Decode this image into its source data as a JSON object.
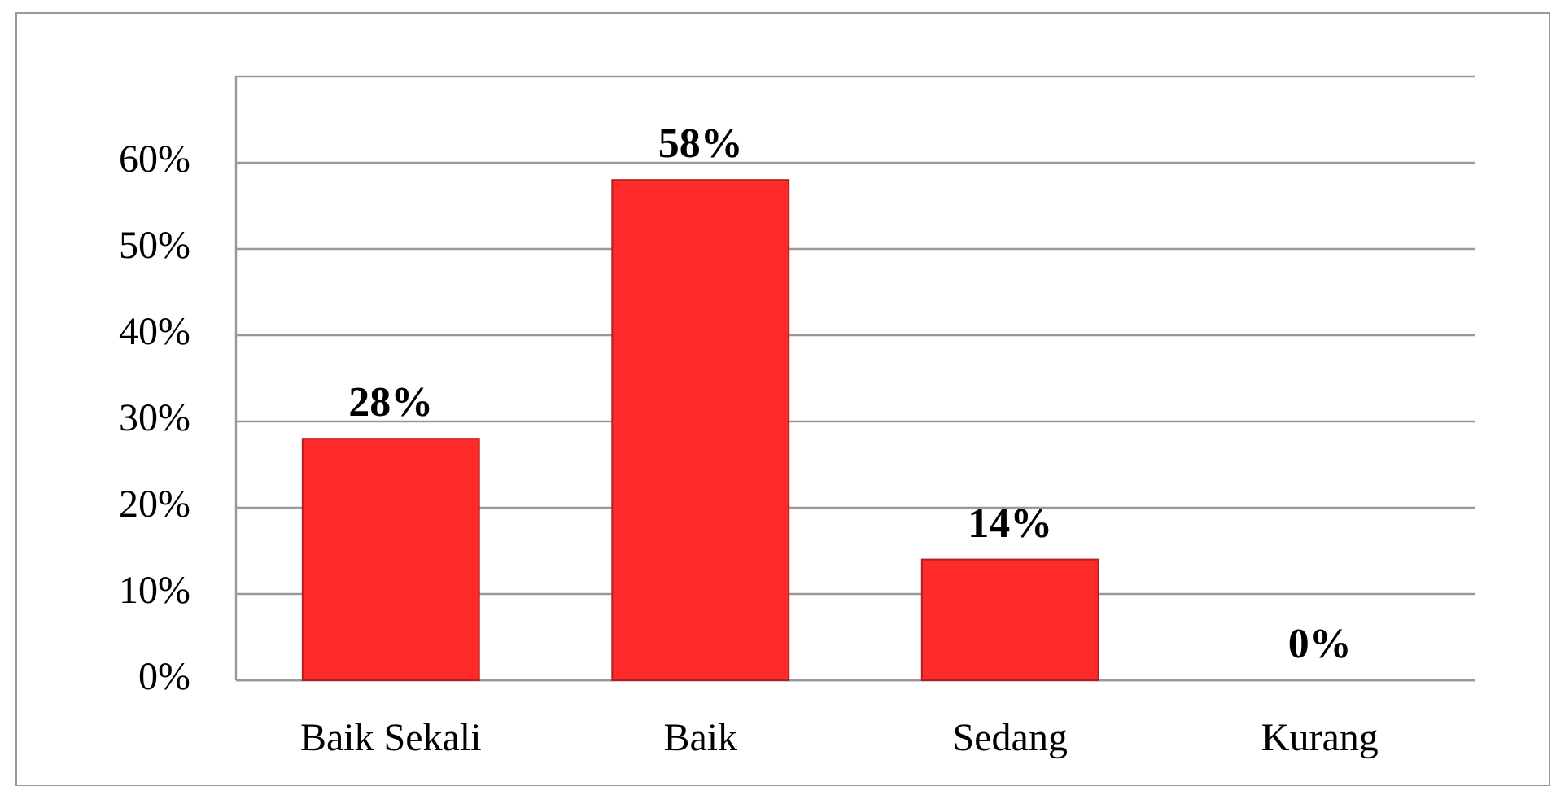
{
  "chart_data": {
    "type": "bar",
    "categories": [
      "Baik Sekali",
      "Baik",
      "Sedang",
      "Kurang"
    ],
    "values": [
      28,
      58,
      14,
      0
    ],
    "value_labels": [
      "28%",
      "58%",
      "14%",
      "0%"
    ],
    "color": "#ff2a2a",
    "ylim": [
      0,
      70
    ],
    "yticks": [
      {
        "value": 0,
        "label": "0%"
      },
      {
        "value": 10,
        "label": "10%"
      },
      {
        "value": 20,
        "label": "20%"
      },
      {
        "value": 30,
        "label": "30%"
      },
      {
        "value": 40,
        "label": "40%"
      },
      {
        "value": 50,
        "label": "50%"
      },
      {
        "value": 60,
        "label": "60%"
      },
      {
        "value": 70,
        "label": null
      }
    ],
    "grid": "y"
  }
}
